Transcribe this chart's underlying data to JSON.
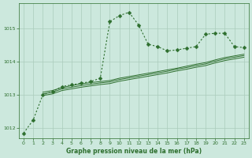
{
  "title": "Graphe pression niveau de la mer (hPa)",
  "background_color": "#cce8dd",
  "grid_color": "#aaccbb",
  "line_color": "#2d6e2d",
  "xlim": [
    -0.5,
    23.5
  ],
  "ylim": [
    1011.7,
    1015.75
  ],
  "yticks": [
    1012,
    1013,
    1014,
    1015
  ],
  "xticks": [
    0,
    1,
    2,
    3,
    4,
    5,
    6,
    7,
    8,
    9,
    10,
    11,
    12,
    13,
    14,
    15,
    16,
    17,
    18,
    19,
    20,
    21,
    22,
    23
  ],
  "series_main": {
    "x": [
      0,
      1,
      2,
      3,
      4,
      5,
      6,
      7,
      8,
      9,
      10,
      11,
      12,
      13,
      14,
      15,
      16,
      17,
      18,
      19,
      20,
      21,
      22,
      23
    ],
    "y": [
      1011.85,
      1012.25,
      1013.0,
      1013.1,
      1013.25,
      1013.3,
      1013.35,
      1013.4,
      1013.5,
      1015.2,
      1015.38,
      1015.48,
      1015.1,
      1014.52,
      1014.45,
      1014.32,
      1014.35,
      1014.4,
      1014.45,
      1014.82,
      1014.85,
      1014.85,
      1014.45,
      1014.42
    ]
  },
  "series_bands": [
    {
      "x": [
        2,
        3,
        4,
        5,
        6,
        7,
        8,
        9,
        10,
        11,
        12,
        13,
        14,
        15,
        16,
        17,
        18,
        19,
        20,
        21,
        22,
        23
      ],
      "y": [
        1013.08,
        1013.13,
        1013.22,
        1013.28,
        1013.33,
        1013.37,
        1013.4,
        1013.43,
        1013.5,
        1013.55,
        1013.6,
        1013.65,
        1013.7,
        1013.75,
        1013.8,
        1013.86,
        1013.92,
        1013.97,
        1014.05,
        1014.12,
        1014.17,
        1014.22
      ]
    },
    {
      "x": [
        2,
        3,
        4,
        5,
        6,
        7,
        8,
        9,
        10,
        11,
        12,
        13,
        14,
        15,
        16,
        17,
        18,
        19,
        20,
        21,
        22,
        23
      ],
      "y": [
        1013.03,
        1013.08,
        1013.18,
        1013.23,
        1013.28,
        1013.32,
        1013.36,
        1013.39,
        1013.46,
        1013.51,
        1013.56,
        1013.61,
        1013.66,
        1013.71,
        1013.77,
        1013.82,
        1013.88,
        1013.93,
        1014.01,
        1014.08,
        1014.13,
        1014.18
      ]
    },
    {
      "x": [
        2,
        3,
        4,
        5,
        6,
        7,
        8,
        9,
        10,
        11,
        12,
        13,
        14,
        15,
        16,
        17,
        18,
        19,
        20,
        21,
        22,
        23
      ],
      "y": [
        1012.98,
        1013.03,
        1013.13,
        1013.18,
        1013.23,
        1013.27,
        1013.31,
        1013.34,
        1013.41,
        1013.46,
        1013.51,
        1013.56,
        1013.61,
        1013.66,
        1013.72,
        1013.77,
        1013.83,
        1013.88,
        1013.96,
        1014.03,
        1014.08,
        1014.13
      ]
    }
  ]
}
